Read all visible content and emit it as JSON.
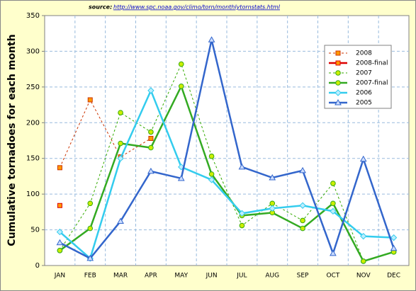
{
  "chart_data": {
    "type": "line",
    "source_label": "source:",
    "source_url": "http://www.spc.noaa.gov/climo/torn/monthlytornstats.html",
    "y_label": "Cumulative tornadoes for each month",
    "categories": [
      "JAN",
      "FEB",
      "MAR",
      "APR",
      "MAY",
      "JUN",
      "JUL",
      "AUG",
      "SEP",
      "OCT",
      "NOV",
      "DEC"
    ],
    "ylim": [
      0,
      350
    ],
    "yticks": [
      0,
      50,
      100,
      150,
      200,
      250,
      300,
      350
    ],
    "grid": true,
    "legend": "upper right",
    "series": [
      {
        "name": "2008",
        "color": "#cc3300",
        "marker_color": "#ff9900",
        "marker": "square",
        "dash": true,
        "values": [
          137,
          232,
          152,
          178,
          null,
          null,
          null,
          null,
          null,
          null,
          null,
          null
        ]
      },
      {
        "name": "2008-final",
        "color": "#dd0000",
        "marker_color": "#ff9900",
        "marker": "square",
        "dash": false,
        "values": [
          84,
          null,
          null,
          null,
          null,
          null,
          null,
          null,
          null,
          null,
          null,
          null
        ]
      },
      {
        "name": "2007",
        "color": "#33aa00",
        "marker_color": "#ccee00",
        "marker": "circle",
        "dash": true,
        "values": [
          21,
          87,
          214,
          187,
          282,
          153,
          56,
          87,
          63,
          115,
          6,
          19
        ]
      },
      {
        "name": "2007-final",
        "color": "#33aa22",
        "marker_color": "#ccee00",
        "marker": "circle",
        "dash": false,
        "values": [
          21,
          52,
          171,
          165,
          251,
          128,
          70,
          74,
          52,
          87,
          6,
          19
        ]
      },
      {
        "name": "2006",
        "color": "#33ccee",
        "marker_color": "#bbeeff",
        "marker": "diamond",
        "dash": false,
        "values": [
          47,
          10,
          150,
          245,
          138,
          120,
          73,
          80,
          84,
          76,
          41,
          39
        ]
      },
      {
        "name": "2005",
        "color": "#3366cc",
        "marker_color": "#ccddff",
        "marker": "triangle",
        "dash": false,
        "values": [
          32,
          10,
          62,
          132,
          122,
          316,
          138,
          123,
          133,
          17,
          149,
          24
        ]
      }
    ]
  }
}
